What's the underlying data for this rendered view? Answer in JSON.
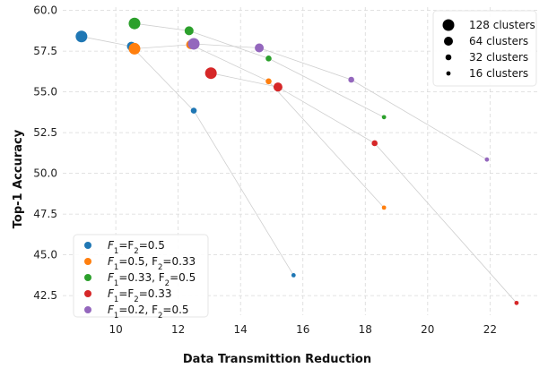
{
  "chart_data": {
    "type": "scatter",
    "xlabel": "Data Transmittion Reduction",
    "ylabel": "Top-1 Accuracy",
    "xlim": [
      8.3,
      23.6
    ],
    "ylim": [
      41.3,
      60.2
    ],
    "xticks": [
      10,
      12,
      14,
      16,
      18,
      20,
      22
    ],
    "yticks": [
      42.5,
      45.0,
      47.5,
      50.0,
      52.5,
      55.0,
      57.5,
      60.0
    ],
    "grid": true,
    "size_legend_placement": "top-right",
    "series_legend_placement": "bottom-left",
    "cluster_sizes": [
      {
        "clusters": 128,
        "label": "128 clusters"
      },
      {
        "clusters": 64,
        "label": "64 clusters"
      },
      {
        "clusters": 32,
        "label": "32 clusters"
      },
      {
        "clusters": 16,
        "label": "16 clusters"
      }
    ],
    "series": [
      {
        "color": "#1f77b4",
        "legend": [
          {
            "t": "F"
          },
          {
            "t": "1",
            "sub": true
          },
          {
            "t": "=F"
          },
          {
            "t": "2",
            "sub": true
          },
          {
            "t": "=0.5"
          }
        ],
        "points": [
          {
            "clusters": 128,
            "x": 8.9,
            "y": 58.4
          },
          {
            "clusters": 64,
            "x": 10.5,
            "y": 57.8
          },
          {
            "clusters": 32,
            "x": 12.5,
            "y": 53.85
          },
          {
            "clusters": 16,
            "x": 15.7,
            "y": 43.75
          }
        ]
      },
      {
        "color": "#ff7f0e",
        "legend": [
          {
            "t": "F"
          },
          {
            "t": "1",
            "sub": true
          },
          {
            "t": "=0.5, F"
          },
          {
            "t": "2",
            "sub": true
          },
          {
            "t": "=0.33"
          }
        ],
        "points": [
          {
            "clusters": 128,
            "x": 10.6,
            "y": 57.65
          },
          {
            "clusters": 64,
            "x": 12.4,
            "y": 57.9
          },
          {
            "clusters": 32,
            "x": 14.9,
            "y": 55.65
          },
          {
            "clusters": 16,
            "x": 18.6,
            "y": 47.9
          }
        ]
      },
      {
        "color": "#2ca02c",
        "legend": [
          {
            "t": "F"
          },
          {
            "t": "1",
            "sub": true
          },
          {
            "t": "=0.33, F"
          },
          {
            "t": "2",
            "sub": true
          },
          {
            "t": "=0.5"
          }
        ],
        "points": [
          {
            "clusters": 128,
            "x": 10.6,
            "y": 59.2
          },
          {
            "clusters": 64,
            "x": 12.35,
            "y": 58.75
          },
          {
            "clusters": 32,
            "x": 14.9,
            "y": 57.05
          },
          {
            "clusters": 16,
            "x": 18.6,
            "y": 53.45
          }
        ]
      },
      {
        "color": "#d62728",
        "legend": [
          {
            "t": "F"
          },
          {
            "t": "1",
            "sub": true
          },
          {
            "t": "=F"
          },
          {
            "t": "2",
            "sub": true
          },
          {
            "t": "=0.33"
          }
        ],
        "points": [
          {
            "clusters": 128,
            "x": 13.05,
            "y": 56.15
          },
          {
            "clusters": 64,
            "x": 15.2,
            "y": 55.3
          },
          {
            "clusters": 32,
            "x": 18.3,
            "y": 51.85
          },
          {
            "clusters": 16,
            "x": 22.85,
            "y": 42.05
          }
        ]
      },
      {
        "color": "#9467bd",
        "legend": [
          {
            "t": "F"
          },
          {
            "t": "1",
            "sub": true
          },
          {
            "t": "=0.2, F"
          },
          {
            "t": "2",
            "sub": true
          },
          {
            "t": "=0.5"
          }
        ],
        "points": [
          {
            "clusters": 128,
            "x": 12.5,
            "y": 57.95
          },
          {
            "clusters": 64,
            "x": 14.6,
            "y": 57.7
          },
          {
            "clusters": 32,
            "x": 17.55,
            "y": 55.75
          },
          {
            "clusters": 16,
            "x": 21.9,
            "y": 50.85
          }
        ]
      }
    ]
  }
}
